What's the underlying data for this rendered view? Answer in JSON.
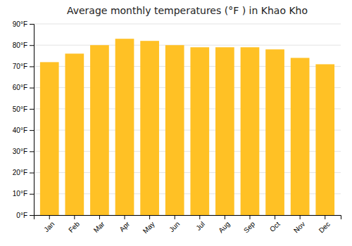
{
  "chart_data": {
    "type": "bar",
    "title": "Average monthly temperatures (°F ) in Khao Kho",
    "categories": [
      "Jan",
      "Feb",
      "Mar",
      "Apr",
      "May",
      "Jun",
      "Jul",
      "Aug",
      "Sep",
      "Oct",
      "Nov",
      "Dec"
    ],
    "values": [
      72,
      76,
      80,
      83,
      82,
      80,
      79,
      79,
      79,
      78,
      74,
      71
    ],
    "color": "#FFC125",
    "ylim": [
      0,
      90
    ],
    "yticks": [
      {
        "value": 0,
        "label": "0°F"
      },
      {
        "value": 10,
        "label": "10°F"
      },
      {
        "value": 20,
        "label": "20°F"
      },
      {
        "value": 30,
        "label": "30°F"
      },
      {
        "value": 40,
        "label": "40°F"
      },
      {
        "value": 50,
        "label": "50°F"
      },
      {
        "value": 60,
        "label": "60°F"
      },
      {
        "value": 70,
        "label": "70°F"
      },
      {
        "value": 80,
        "label": "80°F"
      },
      {
        "value": 90,
        "label": "90°F"
      }
    ],
    "grid": true
  }
}
